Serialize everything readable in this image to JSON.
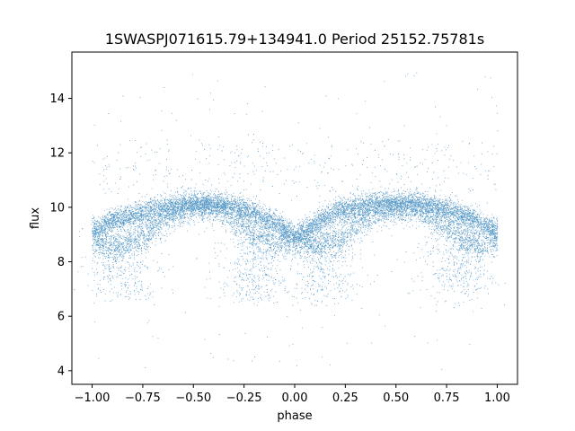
{
  "chart_data": {
    "type": "scatter",
    "title": "1SWASPJ071615.79+134941.0 Period 25152.75781s",
    "xlabel": "phase",
    "ylabel": "flux",
    "xlim": [
      -1.1,
      1.1
    ],
    "ylim": [
      3.5,
      15.7
    ],
    "x_ticks": [
      -1.0,
      -0.75,
      -0.5,
      -0.25,
      0.0,
      0.25,
      0.5,
      0.75,
      1.0
    ],
    "x_tick_labels": [
      "−1.00",
      "−0.75",
      "−0.50",
      "−0.25",
      "0.00",
      "0.25",
      "0.50",
      "0.75",
      "1.00"
    ],
    "y_ticks": [
      4,
      6,
      8,
      10,
      12,
      14
    ],
    "y_tick_labels": [
      "4",
      "6",
      "8",
      "10",
      "12",
      "14"
    ],
    "grid": false,
    "legend": "none",
    "point_color": "#1f77b4",
    "series": [
      {
        "description_free": true,
        "upper_band": {
          "x": [
            -1.0,
            -0.9,
            -0.8,
            -0.7,
            -0.6,
            -0.5,
            -0.4,
            -0.3,
            -0.2,
            -0.1,
            0.0,
            0.1,
            0.2,
            0.3,
            0.4,
            0.5,
            0.6,
            0.7,
            0.8,
            0.9,
            1.0
          ],
          "y": [
            9.1,
            9.5,
            9.7,
            9.9,
            10.0,
            10.1,
            10.1,
            10.0,
            9.8,
            9.4,
            8.9,
            9.4,
            9.8,
            10.0,
            10.1,
            10.1,
            10.1,
            10.0,
            9.8,
            9.5,
            9.1
          ]
        },
        "lower_band": {
          "x": [
            -1.0,
            -0.9,
            -0.8,
            -0.7,
            -0.6,
            -0.5,
            -0.4,
            -0.3,
            -0.2,
            -0.1,
            0.0,
            0.1,
            0.2,
            0.3,
            0.4,
            0.5,
            0.6,
            0.7,
            0.8,
            0.9,
            1.0
          ],
          "y": [
            8.8,
            8.5,
            8.7,
            9.2,
            9.8,
            10.0,
            10.0,
            9.6,
            9.0,
            8.6,
            8.8,
            8.6,
            8.7,
            9.3,
            9.8,
            10.0,
            10.0,
            9.5,
            9.0,
            8.6,
            8.8
          ]
        },
        "dips": [
          {
            "x": -0.85,
            "y": 6.3
          },
          {
            "x": -0.2,
            "y": 6.3
          },
          {
            "x": 0.15,
            "y": 6.3
          },
          {
            "x": 0.8,
            "y": 6.3
          }
        ]
      }
    ]
  }
}
